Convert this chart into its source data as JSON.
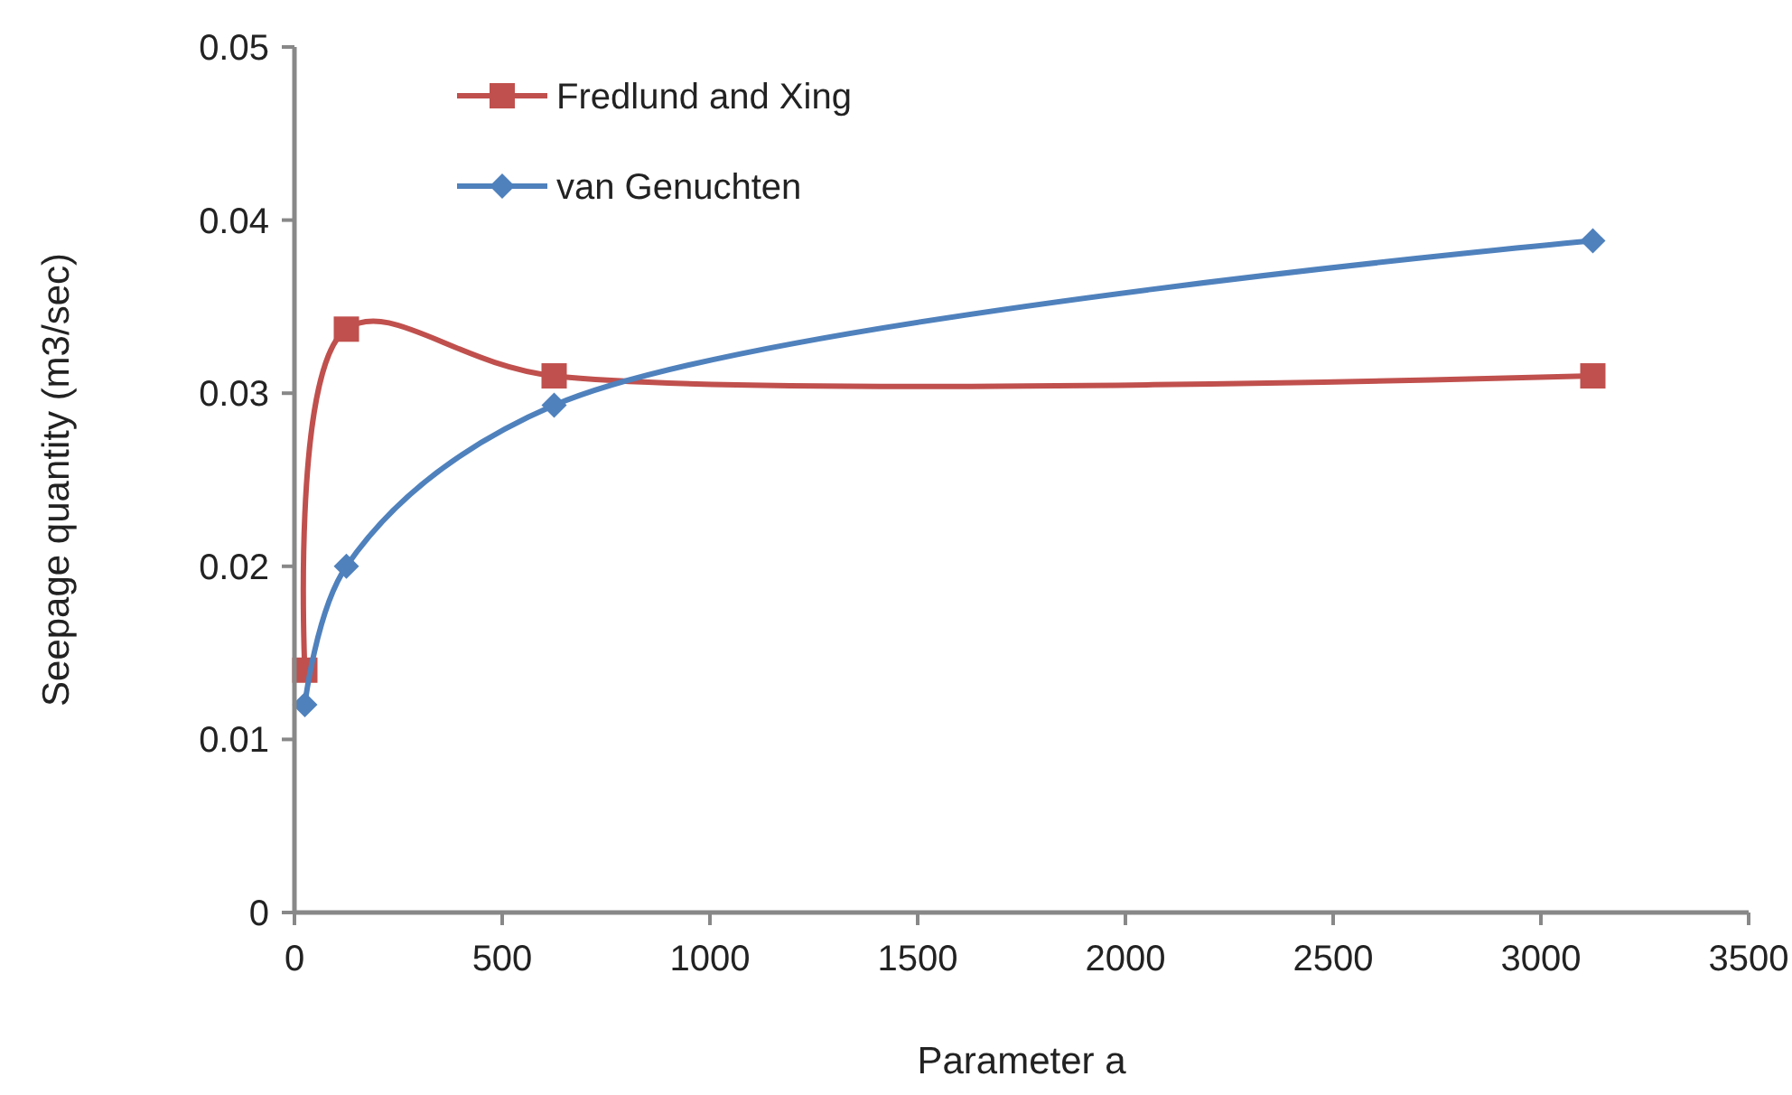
{
  "chart_data": {
    "type": "line",
    "xlabel": "Parameter a",
    "ylabel": "Seepage quantity (m3/sec)",
    "x": [
      25,
      125,
      625,
      3125
    ],
    "series": [
      {
        "name": "Fredlund and Xing",
        "color": "#c0504d",
        "marker": "square",
        "values": [
          0.014,
          0.0337,
          0.031,
          0.031
        ]
      },
      {
        "name": "van Genuchten",
        "color": "#4f81bd",
        "marker": "diamond",
        "values": [
          0.012,
          0.02,
          0.0293,
          0.0388
        ]
      }
    ],
    "xlim": [
      0,
      3500
    ],
    "xticks": [
      0,
      500,
      1000,
      1500,
      2000,
      2500,
      3000,
      3500
    ],
    "ylim": [
      0,
      0.05
    ],
    "yticks": [
      0,
      0.01,
      0.02,
      0.03,
      0.04,
      0.05
    ],
    "grid": false,
    "legend": "top left"
  }
}
